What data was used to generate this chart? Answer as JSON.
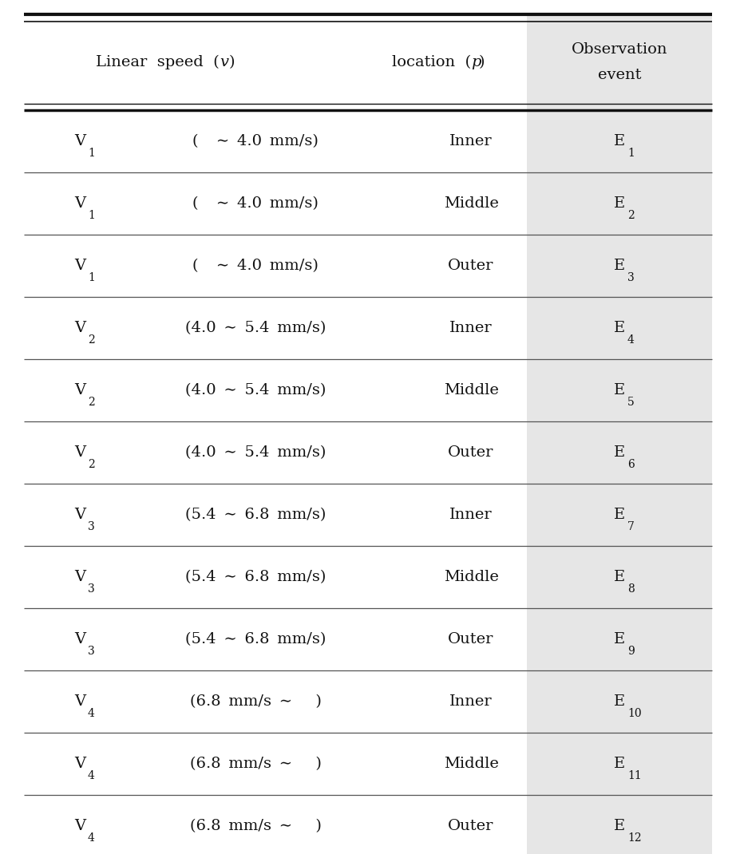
{
  "rows": [
    {
      "v_sub": "1",
      "speed": "(   ∼ 4.0 mm/s)",
      "loc": "Inner",
      "e_sub": "1"
    },
    {
      "v_sub": "1",
      "speed": "(   ∼ 4.0 mm/s)",
      "loc": "Middle",
      "e_sub": "2"
    },
    {
      "v_sub": "1",
      "speed": "(   ∼ 4.0 mm/s)",
      "loc": "Outer",
      "e_sub": "3"
    },
    {
      "v_sub": "2",
      "speed": "(4.0 ∼ 5.4 mm/s)",
      "loc": "Inner",
      "e_sub": "4"
    },
    {
      "v_sub": "2",
      "speed": "(4.0 ∼ 5.4 mm/s)",
      "loc": "Middle",
      "e_sub": "5"
    },
    {
      "v_sub": "2",
      "speed": "(4.0 ∼ 5.4 mm/s)",
      "loc": "Outer",
      "e_sub": "6"
    },
    {
      "v_sub": "3",
      "speed": "(5.4 ∼ 6.8 mm/s)",
      "loc": "Inner",
      "e_sub": "7"
    },
    {
      "v_sub": "3",
      "speed": "(5.4 ∼ 6.8 mm/s)",
      "loc": "Middle",
      "e_sub": "8"
    },
    {
      "v_sub": "3",
      "speed": "(5.4 ∼ 6.8 mm/s)",
      "loc": "Outer",
      "e_sub": "9"
    },
    {
      "v_sub": "4",
      "speed": "(6.8 mm/s ∼   )",
      "loc": "Inner",
      "e_sub": "10"
    },
    {
      "v_sub": "4",
      "speed": "(6.8 mm/s ∼   )",
      "loc": "Middle",
      "e_sub": "11"
    },
    {
      "v_sub": "4",
      "speed": "(6.8 mm/s ∼   )",
      "loc": "Outer",
      "e_sub": "12"
    }
  ],
  "bg_color": "#ffffff",
  "shaded_bg": "#e6e6e6",
  "text_color": "#111111",
  "font_size": 14,
  "sub_font_size": 10,
  "header_font_size": 14
}
